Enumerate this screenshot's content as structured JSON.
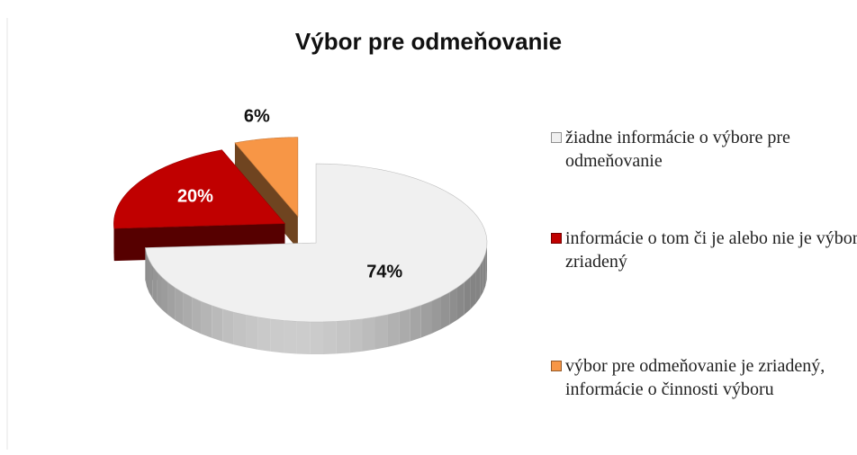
{
  "chart_data": {
    "type": "pie",
    "title": "Výbor pre odmeňovanie",
    "categories": [
      "žiadne informácie o výbore pre odmeňovanie",
      "informácie o tom či je alebo nie je výbor zriadený",
      "výbor pre odmeňovanie je zriadený, informácie o činnosti výboru"
    ],
    "values": [
      74,
      20,
      6
    ],
    "value_labels": [
      "74%",
      "20%",
      "6%"
    ],
    "colors": [
      "#f0f0f0",
      "#c00000",
      "#f79646"
    ],
    "legend": "right",
    "view": "3d",
    "exploded": true
  }
}
